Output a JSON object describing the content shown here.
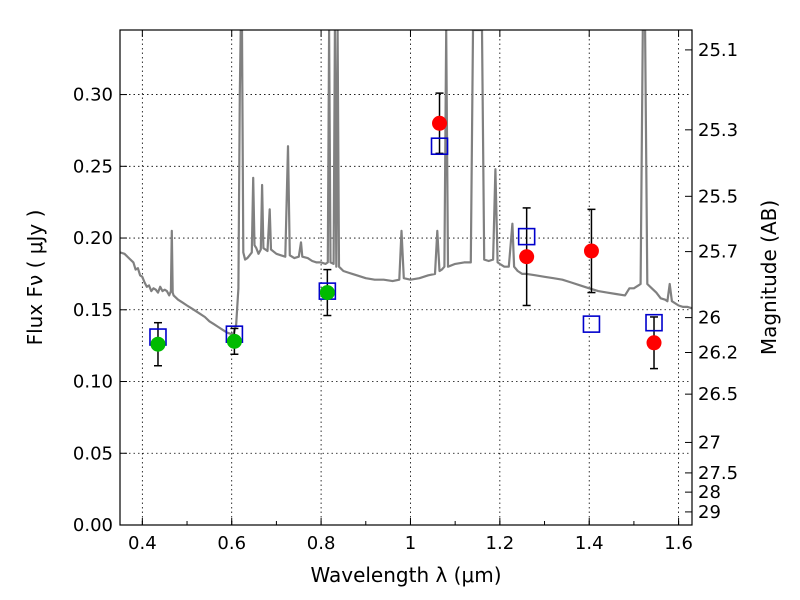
{
  "chart_data": {
    "type": "scatter",
    "xlabel": "Wavelength  λ (μm)",
    "ylabel": "Flux  Fν  ( μJy )",
    "y2label": "Magnitude (AB)",
    "xlim": [
      0.35,
      1.63
    ],
    "ylim": [
      0.0,
      0.345
    ],
    "grid": true,
    "x_ticks": [
      {
        "v": 0.4,
        "label": "0.4"
      },
      {
        "v": 0.6,
        "label": "0.6"
      },
      {
        "v": 0.8,
        "label": "0.8"
      },
      {
        "v": 1.0,
        "label": "1"
      },
      {
        "v": 1.2,
        "label": "1.2"
      },
      {
        "v": 1.4,
        "label": "1.4"
      },
      {
        "v": 1.6,
        "label": "1.6"
      }
    ],
    "y_ticks": [
      {
        "v": 0.0,
        "label": "0.00"
      },
      {
        "v": 0.05,
        "label": "0.05"
      },
      {
        "v": 0.1,
        "label": "0.10"
      },
      {
        "v": 0.15,
        "label": "0.15"
      },
      {
        "v": 0.2,
        "label": "0.20"
      },
      {
        "v": 0.25,
        "label": "0.25"
      },
      {
        "v": 0.3,
        "label": "0.30"
      }
    ],
    "y2_ticks": [
      {
        "v": 25.1,
        "label": "25.1"
      },
      {
        "v": 25.3,
        "label": "25.3"
      },
      {
        "v": 25.5,
        "label": "25.5"
      },
      {
        "v": 25.7,
        "label": "25.7"
      },
      {
        "v": 26.0,
        "label": "26"
      },
      {
        "v": 26.2,
        "label": "26.2"
      },
      {
        "v": 26.5,
        "label": "26.5"
      },
      {
        "v": 27.0,
        "label": "27"
      },
      {
        "v": 27.5,
        "label": "27.5"
      },
      {
        "v": 28.0,
        "label": "28"
      },
      {
        "v": 29.0,
        "label": "29"
      }
    ],
    "colors": {
      "spectrum": "#808080",
      "optical_points": "#00bb00",
      "nir_points": "#ff0000",
      "model_boxes": "#0000cc",
      "errorbar": "#000000"
    },
    "observed_optical": [
      {
        "x": 0.435,
        "y": 0.126,
        "yerr": 0.015
      },
      {
        "x": 0.606,
        "y": 0.128,
        "yerr": 0.009
      },
      {
        "x": 0.814,
        "y": 0.162,
        "yerr": 0.016
      }
    ],
    "observed_nir": [
      {
        "x": 1.065,
        "y": 0.28,
        "yerr": 0.021
      },
      {
        "x": 1.26,
        "y": 0.187,
        "yerr": 0.034
      },
      {
        "x": 1.405,
        "y": 0.191,
        "yerr": 0.029
      },
      {
        "x": 1.545,
        "y": 0.127,
        "yerr": 0.018
      }
    ],
    "model_photometry": [
      {
        "x": 0.435,
        "y": 0.131
      },
      {
        "x": 0.606,
        "y": 0.133
      },
      {
        "x": 0.814,
        "y": 0.163
      },
      {
        "x": 1.065,
        "y": 0.264
      },
      {
        "x": 1.26,
        "y": 0.201
      },
      {
        "x": 1.405,
        "y": 0.14
      },
      {
        "x": 1.545,
        "y": 0.141
      }
    ],
    "model_spectrum": [
      [
        0.35,
        0.19
      ],
      [
        0.36,
        0.189
      ],
      [
        0.37,
        0.186
      ],
      [
        0.38,
        0.183
      ],
      [
        0.385,
        0.178
      ],
      [
        0.39,
        0.179
      ],
      [
        0.395,
        0.174
      ],
      [
        0.4,
        0.173
      ],
      [
        0.405,
        0.169
      ],
      [
        0.41,
        0.166
      ],
      [
        0.415,
        0.167
      ],
      [
        0.42,
        0.163
      ],
      [
        0.425,
        0.165
      ],
      [
        0.43,
        0.164
      ],
      [
        0.435,
        0.162
      ],
      [
        0.44,
        0.166
      ],
      [
        0.445,
        0.163
      ],
      [
        0.45,
        0.164
      ],
      [
        0.455,
        0.163
      ],
      [
        0.46,
        0.16
      ],
      [
        0.464,
        0.163
      ],
      [
        0.466,
        0.205
      ],
      [
        0.468,
        0.162
      ],
      [
        0.47,
        0.16
      ],
      [
        0.48,
        0.157
      ],
      [
        0.49,
        0.155
      ],
      [
        0.5,
        0.153
      ],
      [
        0.51,
        0.151
      ],
      [
        0.52,
        0.149
      ],
      [
        0.53,
        0.147
      ],
      [
        0.54,
        0.145
      ],
      [
        0.55,
        0.142
      ],
      [
        0.56,
        0.14
      ],
      [
        0.57,
        0.138
      ],
      [
        0.58,
        0.136
      ],
      [
        0.59,
        0.134
      ],
      [
        0.6,
        0.133
      ],
      [
        0.605,
        0.134
      ],
      [
        0.61,
        0.14
      ],
      [
        0.615,
        0.165
      ],
      [
        0.618,
        0.3
      ],
      [
        0.62,
        0.345
      ],
      [
        0.623,
        0.345
      ],
      [
        0.626,
        0.19
      ],
      [
        0.63,
        0.185
      ],
      [
        0.635,
        0.186
      ],
      [
        0.64,
        0.188
      ],
      [
        0.645,
        0.19
      ],
      [
        0.648,
        0.242
      ],
      [
        0.651,
        0.195
      ],
      [
        0.655,
        0.193
      ],
      [
        0.66,
        0.189
      ],
      [
        0.665,
        0.192
      ],
      [
        0.668,
        0.237
      ],
      [
        0.671,
        0.193
      ],
      [
        0.68,
        0.191
      ],
      [
        0.685,
        0.22
      ],
      [
        0.688,
        0.192
      ],
      [
        0.7,
        0.189
      ],
      [
        0.71,
        0.188
      ],
      [
        0.72,
        0.187
      ],
      [
        0.726,
        0.264
      ],
      [
        0.73,
        0.188
      ],
      [
        0.74,
        0.186
      ],
      [
        0.75,
        0.187
      ],
      [
        0.755,
        0.197
      ],
      [
        0.758,
        0.187
      ],
      [
        0.77,
        0.186
      ],
      [
        0.78,
        0.184
      ],
      [
        0.79,
        0.183
      ],
      [
        0.8,
        0.183
      ],
      [
        0.81,
        0.182
      ],
      [
        0.815,
        0.183
      ],
      [
        0.818,
        0.345
      ],
      [
        0.821,
        0.183
      ],
      [
        0.828,
        0.182
      ],
      [
        0.831,
        0.345
      ],
      [
        0.834,
        0.18
      ],
      [
        0.837,
        0.345
      ],
      [
        0.84,
        0.18
      ],
      [
        0.85,
        0.177
      ],
      [
        0.86,
        0.176
      ],
      [
        0.87,
        0.175
      ],
      [
        0.88,
        0.174
      ],
      [
        0.9,
        0.172
      ],
      [
        0.92,
        0.171
      ],
      [
        0.94,
        0.171
      ],
      [
        0.96,
        0.17
      ],
      [
        0.975,
        0.171
      ],
      [
        0.98,
        0.205
      ],
      [
        0.985,
        0.172
      ],
      [
        1.0,
        0.171
      ],
      [
        1.02,
        0.172
      ],
      [
        1.04,
        0.174
      ],
      [
        1.055,
        0.175
      ],
      [
        1.06,
        0.205
      ],
      [
        1.065,
        0.177
      ],
      [
        1.07,
        0.178
      ],
      [
        1.076,
        0.18
      ],
      [
        1.08,
        0.345
      ],
      [
        1.084,
        0.18
      ],
      [
        1.1,
        0.182
      ],
      [
        1.12,
        0.183
      ],
      [
        1.135,
        0.183
      ],
      [
        1.14,
        0.345
      ],
      [
        1.16,
        0.345
      ],
      [
        1.165,
        0.185
      ],
      [
        1.175,
        0.184
      ],
      [
        1.185,
        0.185
      ],
      [
        1.19,
        0.248
      ],
      [
        1.195,
        0.183
      ],
      [
        1.2,
        0.182
      ],
      [
        1.21,
        0.18
      ],
      [
        1.22,
        0.18
      ],
      [
        1.228,
        0.21
      ],
      [
        1.232,
        0.18
      ],
      [
        1.24,
        0.177
      ],
      [
        1.25,
        0.175
      ],
      [
        1.26,
        0.175
      ],
      [
        1.28,
        0.174
      ],
      [
        1.3,
        0.173
      ],
      [
        1.32,
        0.172
      ],
      [
        1.34,
        0.171
      ],
      [
        1.36,
        0.169
      ],
      [
        1.38,
        0.167
      ],
      [
        1.4,
        0.165
      ],
      [
        1.42,
        0.163
      ],
      [
        1.44,
        0.162
      ],
      [
        1.46,
        0.161
      ],
      [
        1.48,
        0.16
      ],
      [
        1.49,
        0.165
      ],
      [
        1.5,
        0.165
      ],
      [
        1.51,
        0.167
      ],
      [
        1.515,
        0.168
      ],
      [
        1.52,
        0.345
      ],
      [
        1.525,
        0.345
      ],
      [
        1.53,
        0.168
      ],
      [
        1.54,
        0.165
      ],
      [
        1.55,
        0.162
      ],
      [
        1.56,
        0.158
      ],
      [
        1.57,
        0.157
      ],
      [
        1.575,
        0.156
      ],
      [
        1.58,
        0.168
      ],
      [
        1.585,
        0.156
      ],
      [
        1.6,
        0.153
      ],
      [
        1.61,
        0.152
      ],
      [
        1.62,
        0.152
      ],
      [
        1.63,
        0.151
      ]
    ]
  }
}
